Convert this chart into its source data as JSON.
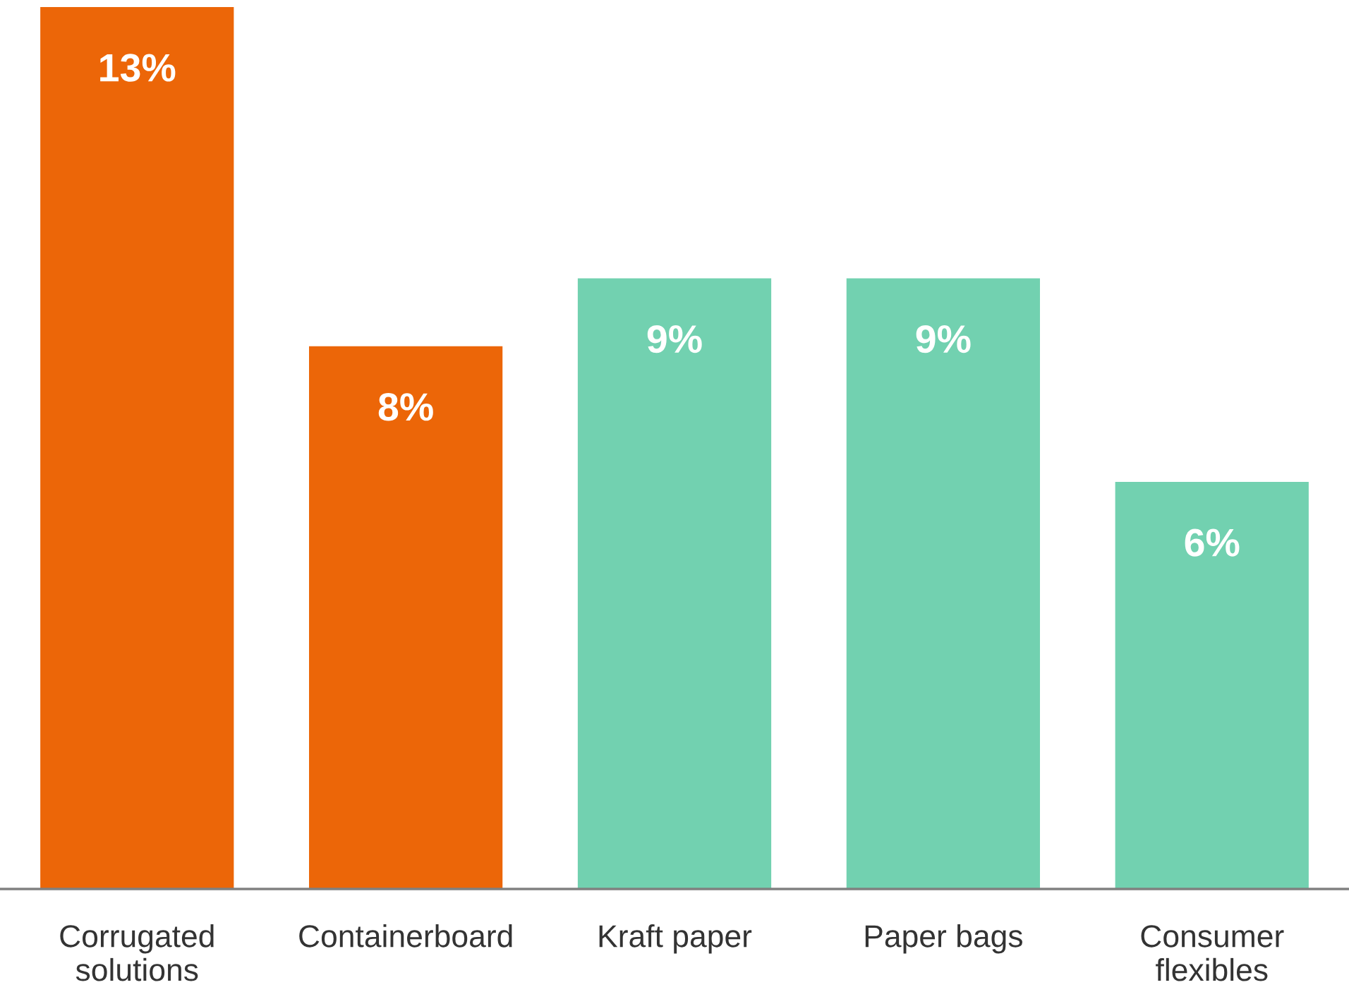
{
  "chart_data": {
    "type": "bar",
    "categories": [
      "Corrugated\nsolutions",
      "Containerboard",
      "Kraft paper",
      "Paper bags",
      "Consumer\nflexibles"
    ],
    "values": [
      13,
      8,
      9,
      9,
      6
    ],
    "colors": [
      "#ec6608",
      "#ec6608",
      "#72d1b0",
      "#72d1b0",
      "#72d1b0"
    ],
    "value_labels": [
      "13%",
      "8%",
      "9%",
      "9%",
      "6%"
    ],
    "grid": false,
    "legend": false
  }
}
